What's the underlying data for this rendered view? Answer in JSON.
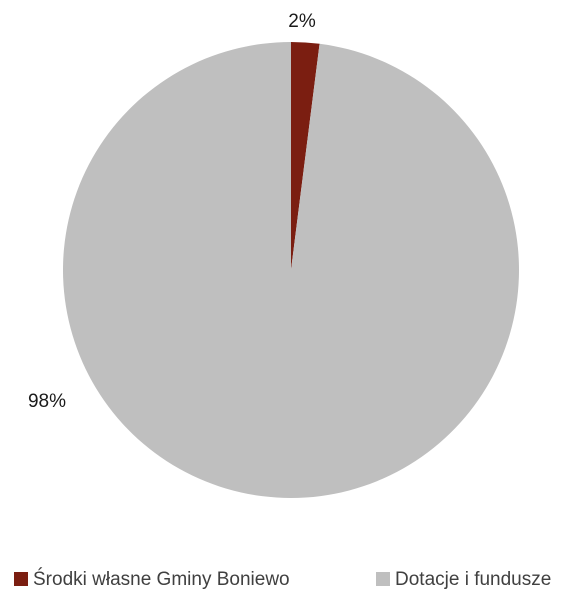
{
  "chart_data": {
    "type": "pie",
    "categories": [
      "Środki własne Gminy Boniewo",
      "Dotacje i fundusze"
    ],
    "values": [
      2,
      98
    ],
    "unit": "%",
    "data_labels": [
      "2%",
      "98%"
    ],
    "colors": [
      "#7b1e11",
      "#bfbfbf"
    ],
    "start_angle": "12 o'clock, clockwise",
    "legend_position": "bottom"
  }
}
